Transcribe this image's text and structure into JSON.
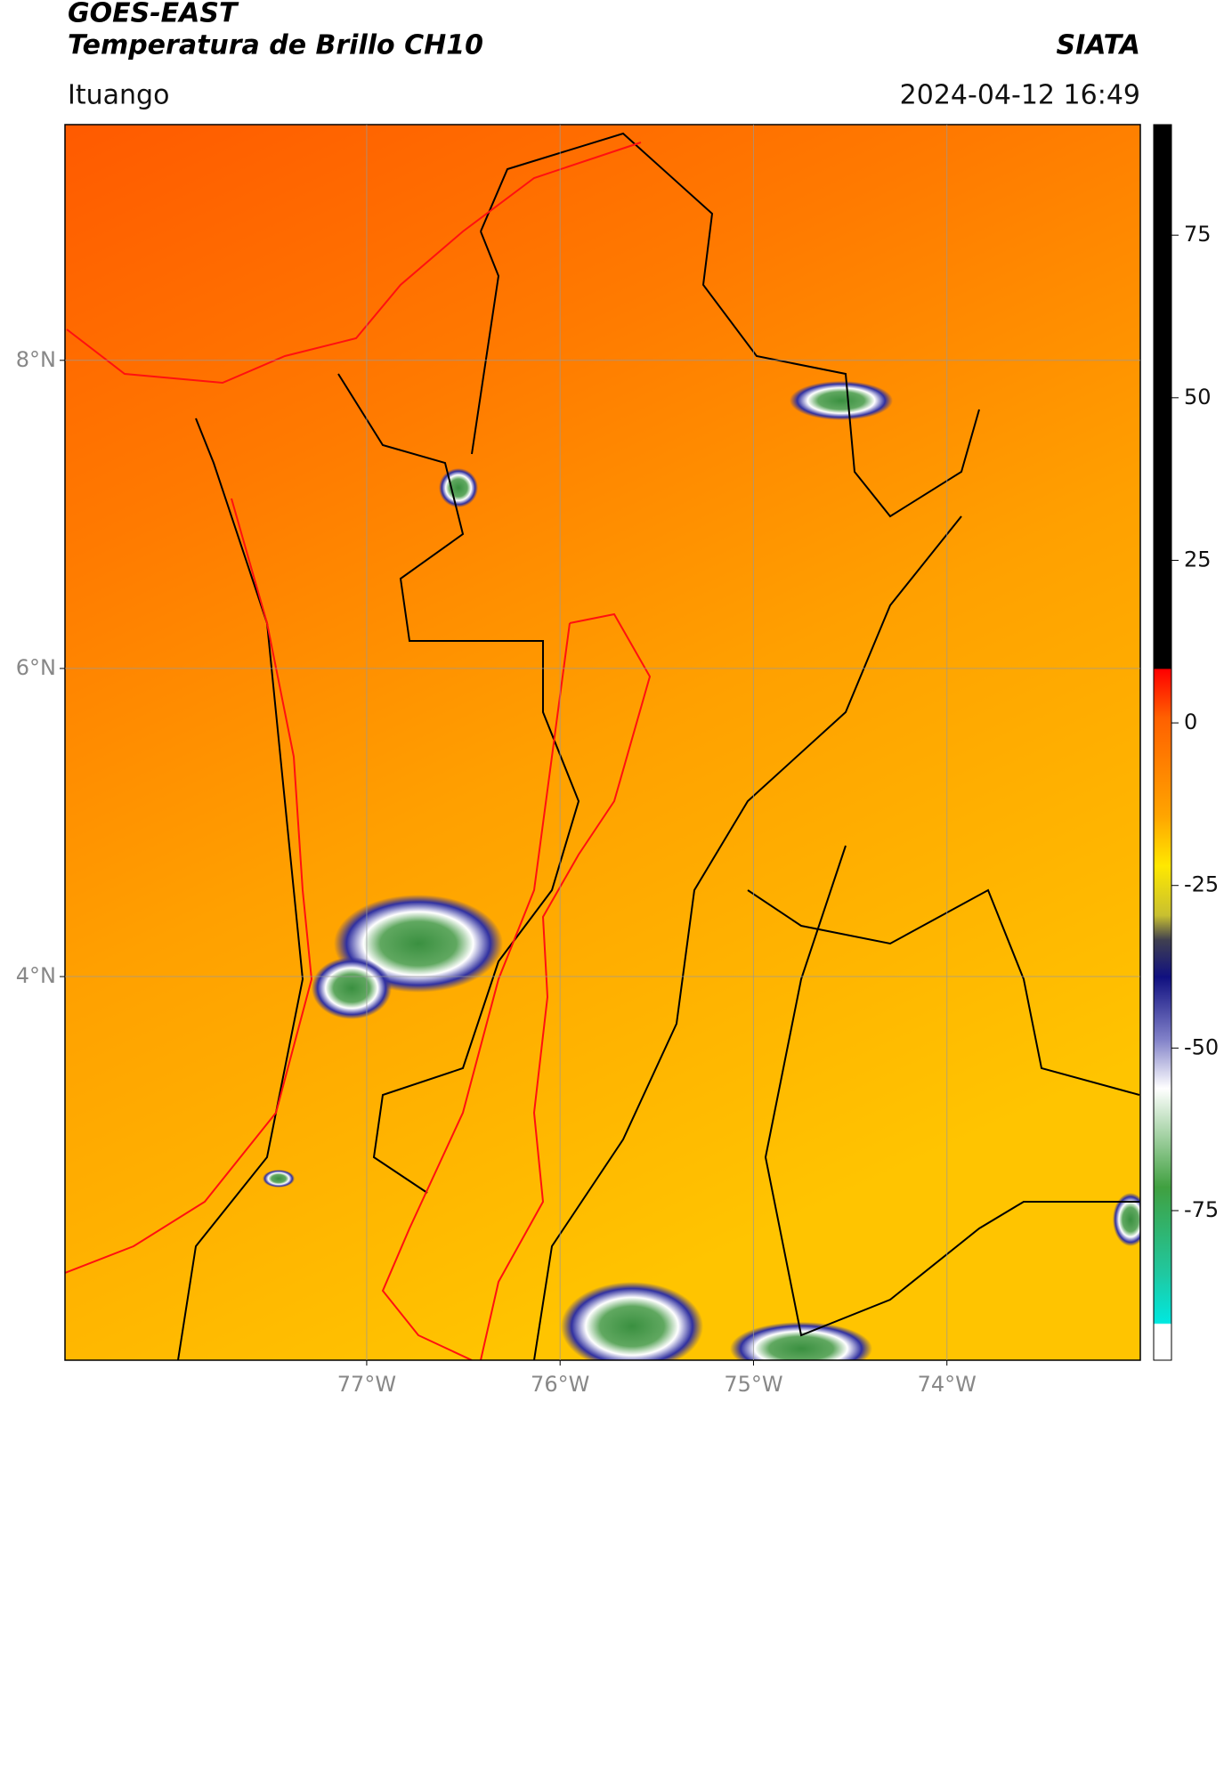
{
  "header": {
    "title": "GOES-EAST",
    "subtitle": "Temperatura de Brillo CH10",
    "brand": "SIATA",
    "location": "Ituango",
    "datetime": "2024-04-12 16:49"
  },
  "map": {
    "latlim": [
      1.51,
      9.53
    ],
    "lonlim": [
      -78.56,
      -73.0
    ],
    "lat_ticks": [
      {
        "value": 8,
        "label": "8°N"
      },
      {
        "value": 6,
        "label": "6°N"
      },
      {
        "value": 4,
        "label": "4°N"
      }
    ],
    "lon_ticks": [
      {
        "value": -77,
        "label": "77°W"
      },
      {
        "value": -76,
        "label": "76°W"
      },
      {
        "value": -75,
        "label": "75°W"
      },
      {
        "value": -74,
        "label": "74°W"
      }
    ],
    "grid": true
  },
  "colorbar": {
    "lim": [
      -98,
      92
    ],
    "ticks": [
      75,
      50,
      25,
      0,
      -25,
      -50,
      -75
    ]
  }
}
